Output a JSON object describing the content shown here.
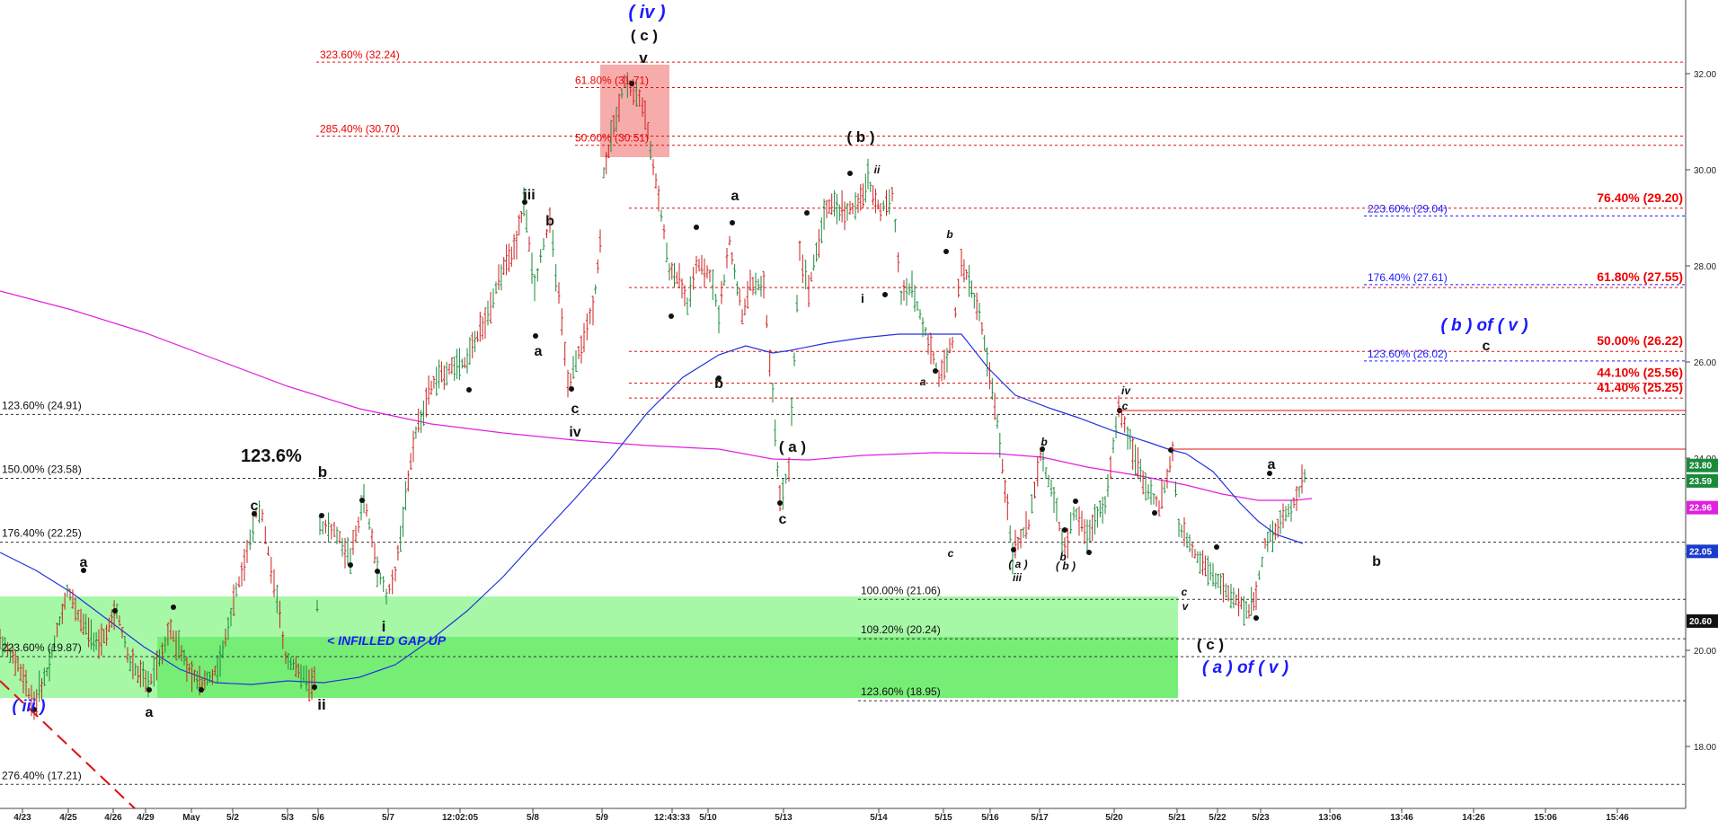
{
  "chart_data": {
    "type": "candlestick",
    "price_scale": {
      "ylim": [
        17.0,
        32.6
      ],
      "ticks": [
        "18.00",
        "20.00",
        "22.00",
        "24.00",
        "26.00",
        "28.00",
        "30.00",
        "32.00"
      ]
    },
    "x_ticks": [
      "4/23",
      "4/25",
      "4/26",
      "4/29",
      "May",
      "5/2",
      "5/3",
      "5/6",
      "5/7",
      "12:02:05",
      "5/8",
      "5/9",
      "12:43:33",
      "5/10",
      "5/13",
      "5/14",
      "5/15",
      "5/16",
      "5/17",
      "5/20",
      "5/21",
      "5/22",
      "5/23",
      "13:06",
      "13:46",
      "14:26",
      "15:06",
      "15:46"
    ],
    "price_tags": [
      {
        "label": "23.80",
        "value": 23.8,
        "color": "#1a8a3a"
      },
      {
        "label": "23.59",
        "value": 23.59,
        "color": "#1a8a3a"
      },
      {
        "label": "22.96",
        "value": 22.96,
        "color": "#e020e0"
      },
      {
        "label": "22.05",
        "value": 22.05,
        "color": "#1a3acc"
      },
      {
        "label": "20.60",
        "value": 20.6,
        "color": "#111111"
      }
    ],
    "fib_levels_black": [
      {
        "label": "123.60% (24.91)",
        "value": 24.91
      },
      {
        "label": "150.00% (23.58)",
        "value": 23.58
      },
      {
        "label": "176.40% (22.25)",
        "value": 22.25
      },
      {
        "label": "223.60% (19.87)",
        "value": 19.87
      },
      {
        "label": "276.40% (17.21)",
        "value": 17.21
      },
      {
        "label": "100.00% (21.06)",
        "value": 21.06
      },
      {
        "label": "109.20% (20.24)",
        "value": 20.24
      },
      {
        "label": "123.60% (18.95)",
        "value": 18.95
      }
    ],
    "fib_levels_red": [
      {
        "label": "323.60% (32.24)",
        "value": 32.24
      },
      {
        "label": "61.80% (31.71)",
        "value": 31.71
      },
      {
        "label": "285.40% (30.70)",
        "value": 30.7
      },
      {
        "label": "50.00% (30.51)",
        "value": 30.51
      },
      {
        "label": "76.40% (29.20)",
        "value": 29.2
      },
      {
        "label": "61.80% (27.55)",
        "value": 27.55
      },
      {
        "label": "50.00% (26.22)",
        "value": 26.22
      },
      {
        "label": "44.10% (25.56)",
        "value": 25.56
      },
      {
        "label": "41.40% (25.25)",
        "value": 25.25
      }
    ],
    "fib_levels_blue": [
      {
        "label": "223.60% (29.04)",
        "value": 29.04
      },
      {
        "label": "176.40% (27.61)",
        "value": 27.61
      },
      {
        "label": "123.60% (26.02)",
        "value": 26.02
      }
    ],
    "annotations": {
      "infilled_gap": "< INFILLED GAP UP",
      "pct_label": "123.6%",
      "blue_labels": [
        "( iv )",
        "( iii )",
        "( b ) of ( v )",
        "( a ) of ( v )"
      ],
      "wave_labels": [
        "( c )",
        "v",
        "iii",
        "b",
        "a",
        "c",
        "iv",
        "( a )",
        "c",
        "a",
        "b",
        "i",
        "ii",
        "( b )",
        "b",
        "a",
        "c",
        "( a )",
        "( b )",
        "ii",
        "i",
        "b",
        "a",
        "a",
        "c",
        "iii",
        "b",
        "iv",
        "c",
        "a",
        "b",
        "c",
        "v",
        "( c )",
        "c",
        "b"
      ]
    },
    "series": [
      {
        "name": "",
        "type": "ma-magenta",
        "color": "#e020e0"
      },
      {
        "name": "",
        "type": "ma-blue",
        "color": "#2233dd"
      }
    ]
  }
}
